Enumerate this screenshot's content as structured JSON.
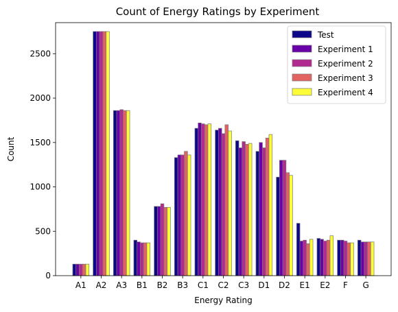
{
  "chart_data": {
    "type": "bar",
    "title": "Count of Energy Ratings by Experiment",
    "xlabel": "Energy Rating",
    "ylabel": "Count",
    "ylim": [
      0,
      2850
    ],
    "yticks": [
      0,
      500,
      1000,
      1500,
      2000,
      2500
    ],
    "categories": [
      "A1",
      "A2",
      "A3",
      "B1",
      "B2",
      "B3",
      "C1",
      "C2",
      "C3",
      "D1",
      "D2",
      "E1",
      "E2",
      "F",
      "G"
    ],
    "grid": false,
    "legend_position": "top-right",
    "series": [
      {
        "name": "Test",
        "color": "#0d0887",
        "values": [
          130,
          2750,
          1860,
          400,
          780,
          1330,
          1660,
          1640,
          1520,
          1400,
          1110,
          590,
          420,
          400,
          400
        ]
      },
      {
        "name": "Experiment 1",
        "color": "#6a00a8",
        "values": [
          130,
          2750,
          1860,
          380,
          780,
          1360,
          1720,
          1660,
          1440,
          1500,
          1300,
          390,
          410,
          400,
          380
        ]
      },
      {
        "name": "Experiment 2",
        "color": "#b12a90",
        "values": [
          130,
          2750,
          1870,
          370,
          810,
          1360,
          1710,
          1600,
          1510,
          1440,
          1300,
          400,
          390,
          390,
          380
        ]
      },
      {
        "name": "Experiment 3",
        "color": "#e16462",
        "values": [
          130,
          2750,
          1860,
          370,
          770,
          1400,
          1700,
          1700,
          1480,
          1550,
          1160,
          360,
          400,
          370,
          380
        ]
      },
      {
        "name": "Experiment 4",
        "color": "#fcfd38",
        "values": [
          130,
          2750,
          1860,
          370,
          770,
          1360,
          1710,
          1630,
          1490,
          1590,
          1130,
          410,
          450,
          370,
          380
        ]
      }
    ]
  }
}
